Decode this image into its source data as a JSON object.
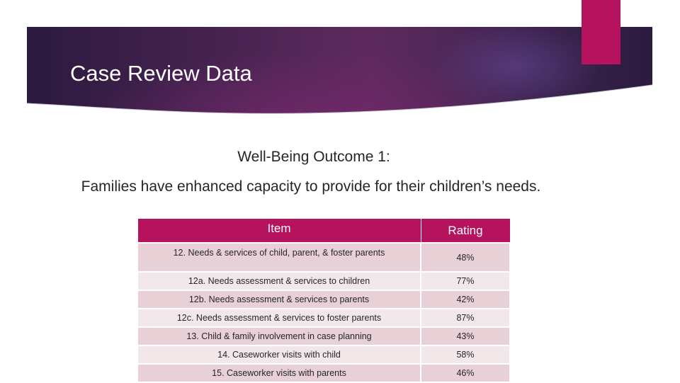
{
  "slide": {
    "title": "Case Review Data",
    "subtitle": "Well-Being Outcome 1:",
    "description": "Families have enhanced capacity to provide for their children’s needs."
  },
  "colors": {
    "accent": "#b5135e",
    "header_dark": "#2c1a40",
    "row_odd": "#e7d0d6",
    "row_even": "#f2e8ea"
  },
  "table": {
    "headers": {
      "item": "Item",
      "rating": "Rating"
    },
    "rows": [
      {
        "item": "12. Needs & services of child, parent, & foster parents",
        "rating": "48%"
      },
      {
        "item": "12a. Needs assessment & services to children",
        "rating": "77%"
      },
      {
        "item": "12b. Needs assessment & services to parents",
        "rating": "42%"
      },
      {
        "item": "12c. Needs assessment & services to foster parents",
        "rating": "87%"
      },
      {
        "item": "13. Child & family involvement in case planning",
        "rating": "43%"
      },
      {
        "item": "14. Caseworker visits with child",
        "rating": "58%"
      },
      {
        "item": "15. Caseworker visits with parents",
        "rating": "46%"
      }
    ]
  }
}
